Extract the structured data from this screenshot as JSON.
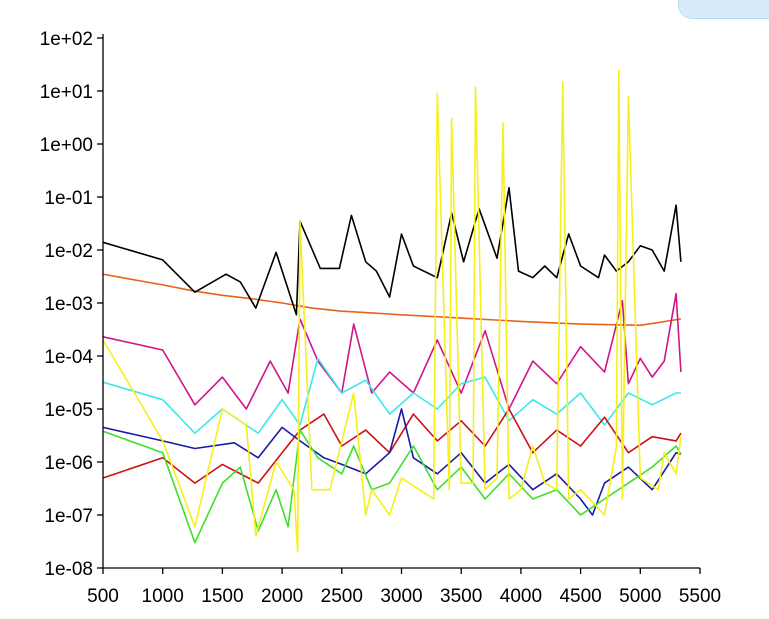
{
  "chart_data": {
    "type": "line",
    "title": "",
    "xlabel": "",
    "ylabel": "",
    "y_scale": "log",
    "xlim": [
      500,
      5500
    ],
    "ylim": [
      1e-08,
      100
    ],
    "xticks": [
      "500",
      "1000",
      "1500",
      "2000",
      "2500",
      "3000",
      "3500",
      "4000",
      "4500",
      "5000",
      "5500"
    ],
    "yticks": [
      "1e-08",
      "1e-07",
      "1e-06",
      "1e-05",
      "1e-04",
      "1e-03",
      "1e-02",
      "1e-01",
      "1e+00",
      "1e+01",
      "1e+02"
    ],
    "grid": false,
    "legend": "none",
    "series": [
      {
        "name": "orange",
        "color": "#e8621a",
        "x": [
          500,
          1000,
          1250,
          1500,
          1750,
          2000,
          2250,
          2500,
          2750,
          3000,
          3500,
          4000,
          4500,
          5000,
          5340
        ],
        "y": [
          0.0035,
          0.0022,
          0.0017,
          0.0014,
          0.0012,
          0.001,
          0.0008,
          0.0007,
          0.00065,
          0.0006,
          0.00052,
          0.00045,
          0.0004,
          0.00038,
          0.0005
        ]
      },
      {
        "name": "black",
        "color": "#000000",
        "x": [
          500,
          1000,
          1270,
          1530,
          1650,
          1780,
          1950,
          2120,
          2150,
          2320,
          2480,
          2580,
          2700,
          2790,
          2900,
          3000,
          3100,
          3300,
          3420,
          3520,
          3650,
          3800,
          3900,
          3980,
          4100,
          4200,
          4300,
          4400,
          4500,
          4650,
          4700,
          4800,
          4900,
          5000,
          5100,
          5200,
          5300,
          5340
        ],
        "y": [
          0.014,
          0.0065,
          0.0016,
          0.0035,
          0.0025,
          0.0008,
          0.009,
          0.0006,
          0.035,
          0.0045,
          0.0045,
          0.045,
          0.006,
          0.004,
          0.0013,
          0.02,
          0.005,
          0.003,
          0.05,
          0.006,
          0.06,
          0.007,
          0.15,
          0.004,
          0.003,
          0.005,
          0.003,
          0.02,
          0.005,
          0.003,
          0.008,
          0.004,
          0.006,
          0.012,
          0.01,
          0.004,
          0.07,
          0.006
        ]
      },
      {
        "name": "magenta",
        "color": "#d0158a",
        "x": [
          500,
          1000,
          1270,
          1500,
          1700,
          1900,
          2050,
          2150,
          2300,
          2500,
          2600,
          2750,
          2900,
          3100,
          3300,
          3500,
          3700,
          3900,
          4100,
          4300,
          4500,
          4700,
          4850,
          4900,
          5000,
          5100,
          5200,
          5300,
          5340
        ],
        "y": [
          0.00023,
          0.00013,
          1.2e-05,
          4e-05,
          1e-05,
          8e-05,
          2e-05,
          0.0005,
          8e-05,
          2e-05,
          0.0004,
          2e-05,
          5e-05,
          2e-05,
          0.0002,
          2e-05,
          0.0003,
          1e-05,
          8e-05,
          3e-05,
          0.00015,
          5e-05,
          0.0011,
          3e-05,
          9e-05,
          4e-05,
          8e-05,
          0.0015,
          5e-05
        ]
      },
      {
        "name": "cyan",
        "color": "#3ae8ee",
        "x": [
          500,
          1000,
          1270,
          1500,
          1800,
          2000,
          2150,
          2300,
          2500,
          2700,
          2900,
          3100,
          3300,
          3500,
          3700,
          3900,
          4100,
          4300,
          4500,
          4700,
          4900,
          5100,
          5300,
          5340
        ],
        "y": [
          3.2e-05,
          1.5e-05,
          3.5e-06,
          1e-05,
          3.5e-06,
          1.5e-05,
          5e-06,
          9e-05,
          2e-05,
          3.5e-05,
          8e-06,
          2e-05,
          1e-05,
          3e-05,
          4e-05,
          6e-06,
          1.5e-05,
          8e-06,
          2e-05,
          5e-06,
          2e-05,
          1.2e-05,
          2e-05,
          2e-05
        ]
      },
      {
        "name": "red",
        "color": "#cc1111",
        "x": [
          500,
          1000,
          1270,
          1500,
          1800,
          2000,
          2150,
          2350,
          2500,
          2700,
          2900,
          3100,
          3300,
          3500,
          3700,
          3900,
          4100,
          4300,
          4500,
          4700,
          4900,
          5100,
          5300,
          5340
        ],
        "y": [
          5e-07,
          1.2e-06,
          4e-07,
          9e-07,
          4e-07,
          1.5e-06,
          4e-06,
          8e-06,
          2e-06,
          4e-06,
          1.5e-06,
          8e-06,
          2.5e-06,
          6e-06,
          2e-06,
          1e-05,
          1.5e-06,
          4e-06,
          2e-06,
          7e-06,
          1.5e-06,
          3e-06,
          2.5e-06,
          3.5e-06
        ]
      },
      {
        "name": "blue",
        "color": "#1a1aa8",
        "x": [
          500,
          1000,
          1270,
          1600,
          1800,
          2000,
          2150,
          2350,
          2500,
          2700,
          2900,
          3000,
          3100,
          3300,
          3500,
          3700,
          3900,
          4100,
          4300,
          4500,
          4600,
          4700,
          4900,
          5100,
          5300,
          5340
        ],
        "y": [
          4.5e-06,
          2.5e-06,
          1.8e-06,
          2.3e-06,
          1.2e-06,
          4.5e-06,
          2.5e-06,
          1.2e-06,
          9e-07,
          6e-07,
          1.5e-06,
          1e-05,
          1.2e-06,
          6e-07,
          1.5e-06,
          4e-07,
          9e-07,
          3e-07,
          6e-07,
          2e-07,
          1e-07,
          4e-07,
          8e-07,
          3e-07,
          1.5e-06,
          1.4e-06
        ]
      },
      {
        "name": "green",
        "color": "#3ee02a",
        "x": [
          500,
          1000,
          1270,
          1500,
          1650,
          1800,
          1950,
          2050,
          2150,
          2300,
          2500,
          2600,
          2750,
          2900,
          3100,
          3300,
          3500,
          3700,
          3900,
          4100,
          4300,
          4500,
          4700,
          4900,
          5100,
          5300,
          5340
        ],
        "y": [
          3.8e-06,
          1.5e-06,
          3e-08,
          4e-07,
          8e-07,
          5e-08,
          3e-07,
          6e-08,
          4e-06,
          1.2e-06,
          6e-07,
          2e-06,
          3e-07,
          4e-07,
          2e-06,
          3e-07,
          8e-07,
          2e-07,
          6e-07,
          2e-07,
          3e-07,
          1e-07,
          2e-07,
          4e-07,
          8e-07,
          2e-06,
          1.4e-06
        ]
      },
      {
        "name": "yellow",
        "color": "#f7ef1c",
        "x": [
          500,
          1000,
          1270,
          1500,
          1700,
          1780,
          1950,
          2100,
          2130,
          2150,
          2250,
          2400,
          2600,
          2700,
          2750,
          2900,
          3000,
          3150,
          3270,
          3300,
          3400,
          3420,
          3500,
          3600,
          3620,
          3700,
          3800,
          3850,
          3900,
          4000,
          4100,
          4200,
          4300,
          4350,
          4400,
          4500,
          4700,
          4800,
          4820,
          4850,
          4900,
          5000,
          5150,
          5200,
          5300,
          5340
        ],
        "y": [
          0.0002,
          2.5e-06,
          6e-08,
          1e-05,
          5e-06,
          4e-08,
          1e-06,
          3e-07,
          2e-08,
          0.035,
          3e-07,
          3e-07,
          2e-05,
          1e-07,
          3e-07,
          1e-07,
          5e-07,
          3e-07,
          2e-07,
          9,
          3e-07,
          3,
          4e-07,
          4e-07,
          12,
          3e-07,
          5e-07,
          2.5,
          2e-07,
          3e-07,
          2e-06,
          4e-07,
          3e-07,
          15,
          2e-07,
          3e-07,
          1e-07,
          2e-06,
          25,
          2e-07,
          8,
          5e-07,
          3e-07,
          1.5e-06,
          6e-07,
          3e-06
        ]
      }
    ]
  }
}
